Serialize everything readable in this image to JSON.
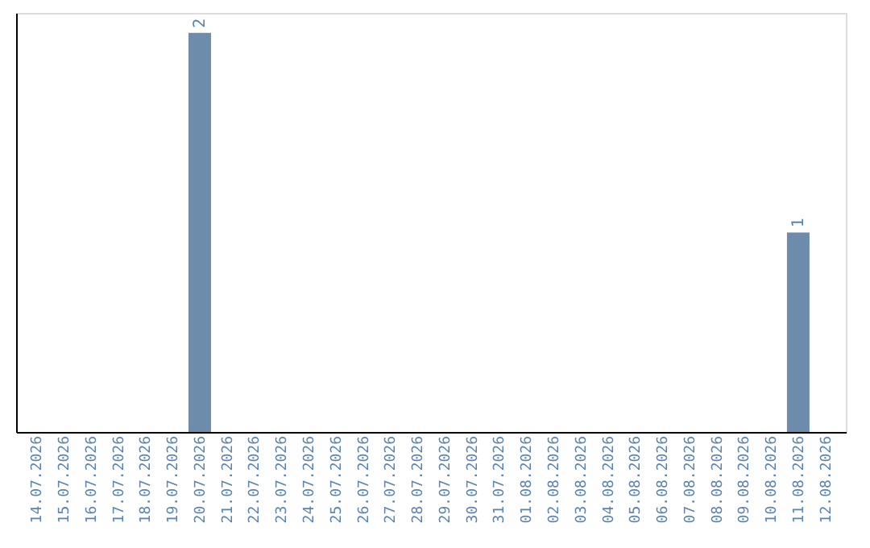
{
  "chart_data": {
    "type": "bar",
    "categories": [
      "14.07.2026",
      "15.07.2026",
      "16.07.2026",
      "17.07.2026",
      "18.07.2026",
      "19.07.2026",
      "20.07.2026",
      "21.07.2026",
      "22.07.2026",
      "23.07.2026",
      "24.07.2026",
      "25.07.2026",
      "26.07.2026",
      "27.07.2026",
      "28.07.2026",
      "29.07.2026",
      "30.07.2026",
      "31.07.2026",
      "01.08.2026",
      "02.08.2026",
      "03.08.2026",
      "04.08.2026",
      "05.08.2026",
      "06.08.2026",
      "07.08.2026",
      "08.08.2026",
      "09.08.2026",
      "10.08.2026",
      "11.08.2026",
      "12.08.2026"
    ],
    "values": [
      0,
      0,
      0,
      0,
      0,
      0,
      2,
      0,
      0,
      0,
      0,
      0,
      0,
      0,
      0,
      0,
      0,
      0,
      0,
      0,
      0,
      0,
      0,
      0,
      0,
      0,
      0,
      0,
      1,
      0
    ],
    "value_labels": [
      null,
      null,
      null,
      null,
      null,
      null,
      "2",
      null,
      null,
      null,
      null,
      null,
      null,
      null,
      null,
      null,
      null,
      null,
      null,
      null,
      null,
      null,
      null,
      null,
      null,
      null,
      null,
      null,
      "1",
      null
    ],
    "color": "#6d8cab",
    "ylim": [
      0,
      2.1
    ],
    "tick_labels": "x",
    "grid": false
  }
}
